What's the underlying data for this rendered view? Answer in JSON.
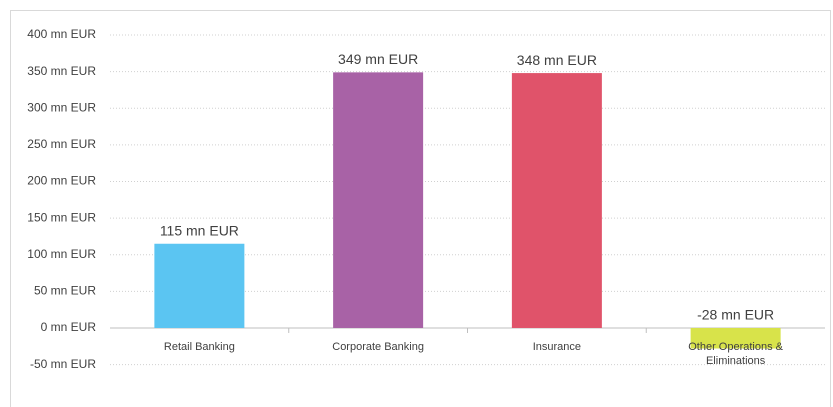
{
  "chart_data": {
    "type": "bar",
    "categories": [
      "Retail Banking",
      "Corporate Banking",
      "Insurance",
      "Other Operations & Eliminations"
    ],
    "values": [
      115,
      349,
      348,
      -28
    ],
    "value_labels": [
      "115 mn EUR",
      "349 mn EUR",
      "348 mn EUR",
      "-28 mn EUR"
    ],
    "colors": [
      "#5bc5f2",
      "#a862a6",
      "#e0536a",
      "#d8e34a"
    ],
    "ylim": [
      -50,
      400
    ],
    "yticks": [
      {
        "value": -50,
        "label": "-50 mn EUR"
      },
      {
        "value": 0,
        "label": "0 mn EUR"
      },
      {
        "value": 50,
        "label": "50 mn EUR"
      },
      {
        "value": 100,
        "label": "100 mn EUR"
      },
      {
        "value": 150,
        "label": "150 mn EUR"
      },
      {
        "value": 200,
        "label": "200 mn EUR"
      },
      {
        "value": 250,
        "label": "250 mn EUR"
      },
      {
        "value": 300,
        "label": "300 mn EUR"
      },
      {
        "value": 350,
        "label": "350 mn EUR"
      },
      {
        "value": 400,
        "label": "400 mn EUR"
      }
    ],
    "grid": true
  }
}
